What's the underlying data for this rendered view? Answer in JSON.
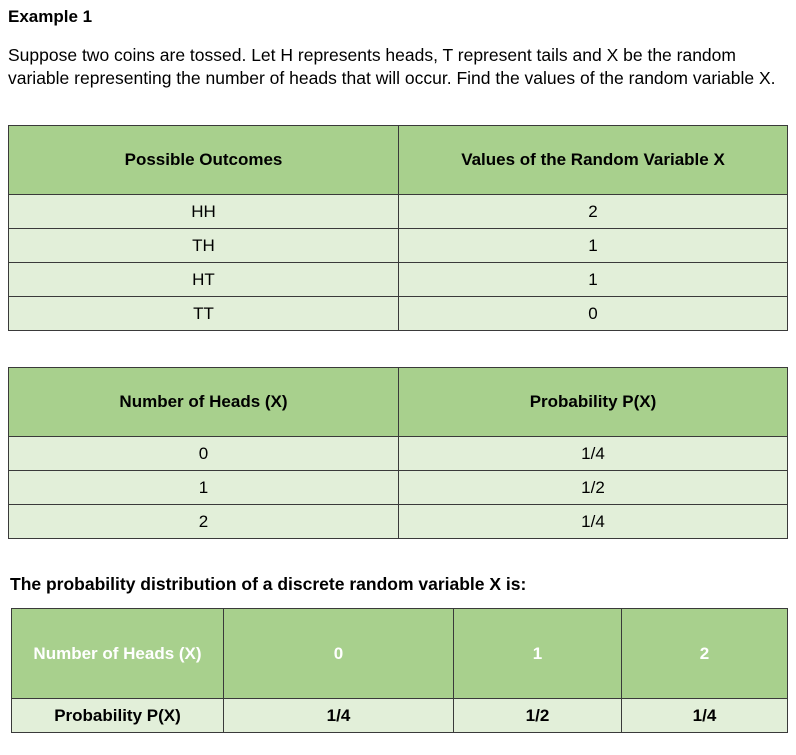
{
  "heading": "Example 1",
  "problem": "Suppose two coins are tossed. Let H represents heads, T represent tails and X be the random variable representing the number of heads that will occur. Find the values of the random variable X.",
  "table1": {
    "headers": [
      "Possible Outcomes",
      "Values of the Random Variable X"
    ],
    "rows": [
      [
        "HH",
        "2"
      ],
      [
        "TH",
        "1"
      ],
      [
        "HT",
        "1"
      ],
      [
        "TT",
        "0"
      ]
    ]
  },
  "table2": {
    "headers": [
      "Number of Heads (X)",
      "Probability P(X)"
    ],
    "rows": [
      [
        "0",
        "1/4"
      ],
      [
        "1",
        "1/2"
      ],
      [
        "2",
        "1/4"
      ]
    ]
  },
  "distribution_caption": "The probability distribution of a discrete random variable X is:",
  "table3": {
    "row_label_x": "Number of Heads (X)",
    "row_label_p": "Probability P(X)",
    "x_values": [
      "0",
      "1",
      "2"
    ],
    "p_values": [
      "1/4",
      "1/2",
      "1/4"
    ]
  }
}
